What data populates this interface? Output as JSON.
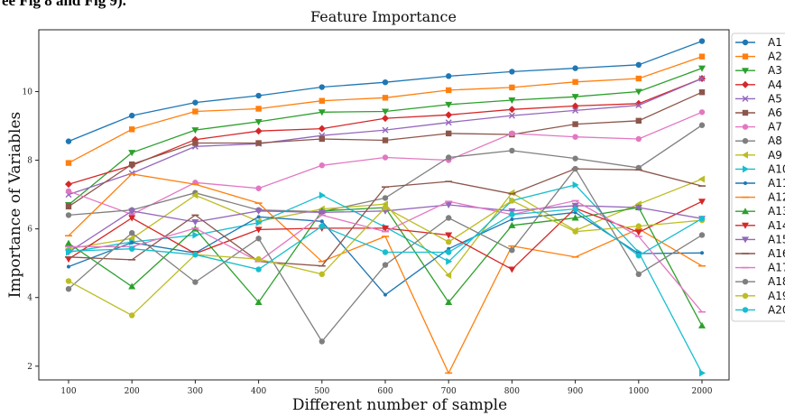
{
  "header_fragment": "ee Fig 8 and Fig 9).",
  "chart_data": {
    "type": "line",
    "title": "Feature Importance",
    "xlabel": "Different number of sample",
    "ylabel": "Importance of Variables",
    "categories": [
      "100",
      "200",
      "300",
      "400",
      "500",
      "600",
      "700",
      "800",
      "900",
      "1000",
      "2000"
    ],
    "yticks": [
      2,
      4,
      6,
      8,
      10
    ],
    "ylim": [
      1.6,
      11.8
    ],
    "grid": false,
    "legend": "right",
    "legend_entries": [
      "A1",
      "A2",
      "A3",
      "A4",
      "A5",
      "A6",
      "A7",
      "A8",
      "A9",
      "A10",
      "A11",
      "A12",
      "A13",
      "A14",
      "A15",
      "A16",
      "A17",
      "A18",
      "A19",
      "A20"
    ],
    "series": [
      {
        "name": "A1",
        "color": "#1f77b4",
        "marker": "circle",
        "values": [
          8.55,
          9.3,
          9.68,
          9.88,
          10.13,
          10.27,
          10.45,
          10.58,
          10.68,
          10.78,
          11.47
        ]
      },
      {
        "name": "A2",
        "color": "#ff7f0e",
        "marker": "square",
        "values": [
          7.92,
          8.9,
          9.42,
          9.5,
          9.73,
          9.82,
          10.04,
          10.12,
          10.28,
          10.38,
          11.02
        ]
      },
      {
        "name": "A3",
        "color": "#2ca02c",
        "marker": "tri-down",
        "values": [
          6.7,
          8.22,
          8.88,
          9.12,
          9.4,
          9.42,
          9.62,
          9.75,
          9.85,
          10.0,
          10.68
        ]
      },
      {
        "name": "A4",
        "color": "#d62728",
        "marker": "diamond",
        "values": [
          7.3,
          7.85,
          8.6,
          8.85,
          8.92,
          9.22,
          9.32,
          9.48,
          9.58,
          9.65,
          10.38
        ]
      },
      {
        "name": "A5",
        "color": "#9467bd",
        "marker": "x",
        "values": [
          7.0,
          7.62,
          8.4,
          8.48,
          8.72,
          8.88,
          9.1,
          9.3,
          9.45,
          9.6,
          10.38
        ]
      },
      {
        "name": "A6",
        "color": "#8c564b",
        "marker": "square",
        "values": [
          6.65,
          7.88,
          8.5,
          8.5,
          8.62,
          8.58,
          8.78,
          8.75,
          9.05,
          9.15,
          9.98
        ]
      },
      {
        "name": "A7",
        "color": "#e377c2",
        "marker": "circle",
        "values": [
          7.1,
          6.42,
          7.35,
          7.18,
          7.85,
          8.08,
          8.0,
          8.78,
          8.68,
          8.62,
          9.4
        ]
      },
      {
        "name": "A8",
        "color": "#7f7f7f",
        "marker": "circle",
        "values": [
          6.4,
          6.55,
          7.05,
          6.55,
          6.5,
          6.9,
          8.08,
          8.28,
          8.05,
          7.78,
          9.02
        ]
      },
      {
        "name": "A9",
        "color": "#bcbd22",
        "marker": "tri-left",
        "values": [
          5.42,
          5.72,
          6.98,
          6.22,
          6.58,
          6.72,
          4.65,
          7.05,
          5.95,
          6.72,
          7.45
        ]
      },
      {
        "name": "A10",
        "color": "#17becf",
        "marker": "tri-right",
        "values": [
          5.32,
          5.62,
          5.82,
          6.18,
          6.98,
          6.05,
          5.05,
          6.82,
          7.28,
          5.32,
          1.8
        ]
      },
      {
        "name": "A11",
        "color": "#1f77b4",
        "marker": "point",
        "values": [
          4.9,
          5.6,
          5.3,
          6.35,
          6.22,
          4.08,
          5.42,
          6.28,
          6.48,
          5.28,
          5.3
        ]
      },
      {
        "name": "A12",
        "color": "#ff7f0e",
        "marker": "line",
        "values": [
          5.8,
          7.6,
          7.3,
          6.75,
          5.05,
          5.78,
          1.8,
          5.5,
          5.18,
          6.0,
          4.92
        ]
      },
      {
        "name": "A13",
        "color": "#2ca02c",
        "marker": "tri-up",
        "values": [
          5.58,
          4.32,
          6.0,
          3.86,
          6.52,
          6.62,
          3.86,
          6.1,
          6.32,
          6.62,
          3.18
        ]
      },
      {
        "name": "A14",
        "color": "#d62728",
        "marker": "tri-down",
        "values": [
          5.12,
          6.32,
          5.28,
          5.98,
          6.02,
          6.02,
          5.82,
          4.82,
          6.6,
          5.9,
          6.8
        ]
      },
      {
        "name": "A15",
        "color": "#9467bd",
        "marker": "tri-down",
        "values": [
          5.32,
          6.52,
          6.2,
          6.52,
          6.48,
          6.52,
          6.7,
          6.52,
          6.68,
          6.62,
          6.3
        ]
      },
      {
        "name": "A16",
        "color": "#8c564b",
        "marker": "line",
        "values": [
          5.18,
          5.1,
          6.4,
          5.05,
          4.92,
          7.22,
          7.38,
          7.02,
          7.75,
          7.72,
          7.25
        ]
      },
      {
        "name": "A17",
        "color": "#e377c2",
        "marker": "line",
        "values": [
          5.48,
          5.48,
          6.02,
          5.05,
          6.4,
          5.92,
          6.8,
          6.42,
          6.82,
          5.78,
          3.58
        ]
      },
      {
        "name": "A18",
        "color": "#7f7f7f",
        "marker": "circle",
        "values": [
          4.25,
          5.88,
          4.45,
          5.72,
          2.72,
          4.95,
          6.32,
          5.38,
          7.75,
          4.68,
          5.82
        ]
      },
      {
        "name": "A19",
        "color": "#bcbd22",
        "marker": "circle",
        "values": [
          4.48,
          3.48,
          5.25,
          5.12,
          4.68,
          6.62,
          5.62,
          6.82,
          5.92,
          6.08,
          6.25
        ]
      },
      {
        "name": "A20",
        "color": "#17becf",
        "marker": "circle",
        "values": [
          5.35,
          5.42,
          5.25,
          4.82,
          6.08,
          5.32,
          5.32,
          6.42,
          6.58,
          5.22,
          6.3
        ]
      }
    ]
  }
}
